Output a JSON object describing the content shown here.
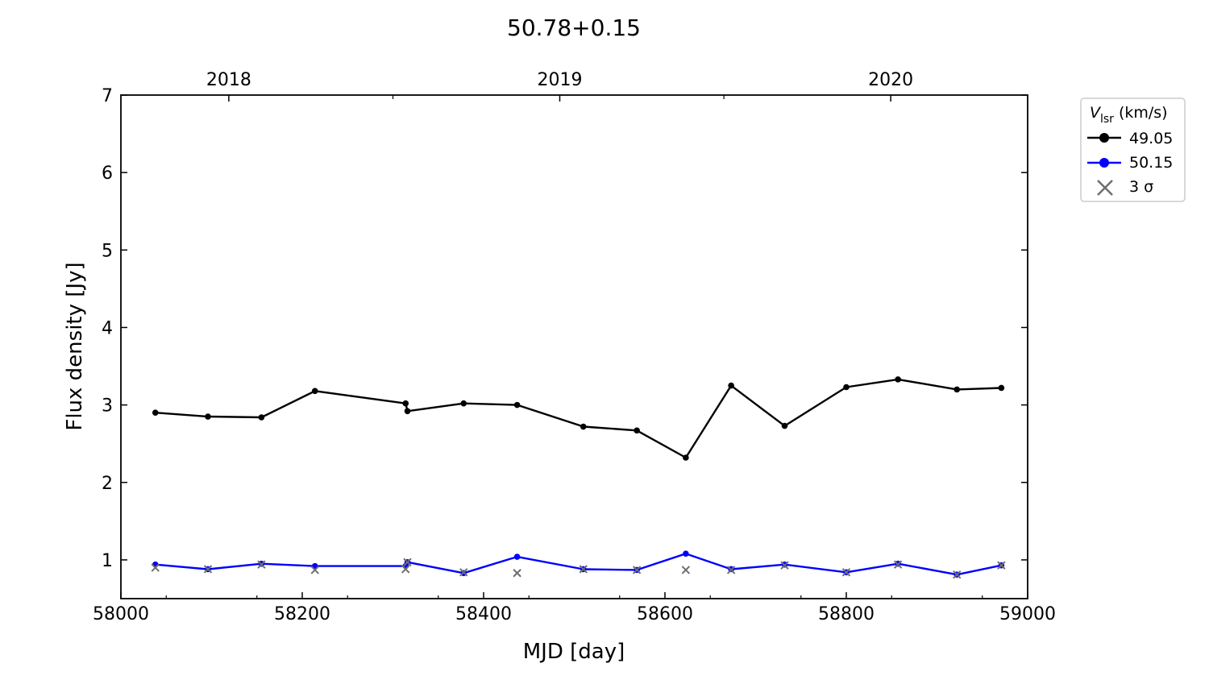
{
  "chart_data": {
    "type": "line",
    "title": "50.78+0.15",
    "xlabel": "MJD [day]",
    "ylabel": "Flux density [Jy]",
    "xlim": [
      58000,
      59000
    ],
    "ylim": [
      0.5,
      7
    ],
    "xticks": [
      58000,
      58200,
      58400,
      58600,
      58800,
      59000
    ],
    "yticks": [
      1,
      2,
      3,
      4,
      5,
      6,
      7
    ],
    "top_axis": {
      "labels": [
        "2018",
        "2019",
        "2020"
      ],
      "label_mjd": [
        58119,
        58484,
        58849
      ],
      "minor_mjd": [
        58300,
        58665,
        59031
      ]
    },
    "grid": false,
    "legend": {
      "title_main": "V",
      "title_sub": "lsr",
      "title_unit": "(km/s)",
      "placement": "outside-top-right"
    },
    "series": [
      {
        "name": "49.05",
        "color": "#000000",
        "x": [
          58038,
          58096,
          58155,
          58214,
          58314,
          58316,
          58378,
          58437,
          58510,
          58569,
          58623,
          58673,
          58732,
          58800,
          58857,
          58922,
          58971
        ],
        "y": [
          2.9,
          2.85,
          2.84,
          3.18,
          3.02,
          2.92,
          3.02,
          3.0,
          2.72,
          2.67,
          2.32,
          3.25,
          2.73,
          3.23,
          3.33,
          3.2,
          3.22
        ]
      },
      {
        "name": "50.15",
        "color": "#0000ff",
        "x": [
          58038,
          58096,
          58155,
          58214,
          58314,
          58316,
          58378,
          58437,
          58510,
          58569,
          58623,
          58673,
          58732,
          58800,
          58857,
          58922,
          58971
        ],
        "y": [
          0.94,
          0.88,
          0.95,
          0.92,
          0.92,
          0.97,
          0.83,
          1.04,
          0.88,
          0.87,
          1.08,
          0.88,
          0.94,
          0.84,
          0.95,
          0.81,
          0.93
        ]
      }
    ],
    "sigma": {
      "name": "3 σ",
      "color": "#6e6e6e",
      "x": [
        58038,
        58096,
        58155,
        58214,
        58314,
        58316,
        58378,
        58437,
        58510,
        58569,
        58623,
        58673,
        58732,
        58800,
        58857,
        58922,
        58971
      ],
      "y": [
        0.9,
        0.88,
        0.94,
        0.87,
        0.88,
        0.97,
        0.84,
        0.83,
        0.88,
        0.87,
        0.87,
        0.87,
        0.93,
        0.84,
        0.94,
        0.81,
        0.93
      ]
    }
  }
}
